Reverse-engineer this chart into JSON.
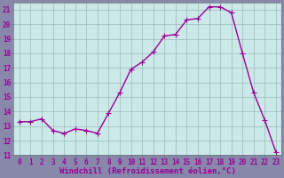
{
  "x": [
    0,
    1,
    2,
    3,
    4,
    5,
    6,
    7,
    8,
    9,
    10,
    11,
    12,
    13,
    14,
    15,
    16,
    17,
    18,
    19,
    20,
    21,
    22,
    23
  ],
  "y": [
    13.3,
    13.3,
    13.5,
    12.7,
    12.5,
    12.8,
    12.7,
    12.5,
    13.9,
    15.3,
    16.9,
    17.4,
    18.1,
    19.2,
    19.3,
    20.3,
    20.4,
    21.2,
    21.2,
    20.8,
    18.0,
    15.3,
    13.4,
    11.2
  ],
  "line_color": "#990099",
  "marker": "+",
  "marker_size": 4,
  "bg_color": "#cce8e8",
  "grid_color": "#99bbbb",
  "xlabel": "Windchill (Refroidissement éolien,°C)",
  "ylim": [
    11,
    21.5
  ],
  "yticks": [
    11,
    12,
    13,
    14,
    15,
    16,
    17,
    18,
    19,
    20,
    21
  ],
  "xlim": [
    -0.5,
    23.5
  ],
  "xticks": [
    0,
    1,
    2,
    3,
    4,
    5,
    6,
    7,
    8,
    9,
    10,
    11,
    12,
    13,
    14,
    15,
    16,
    17,
    18,
    19,
    20,
    21,
    22,
    23
  ],
  "xlabel_fontsize": 6.5,
  "tick_fontsize": 5.5,
  "line_width": 1.0,
  "fig_bg_color": "#8888aa",
  "spine_color": "#667777"
}
